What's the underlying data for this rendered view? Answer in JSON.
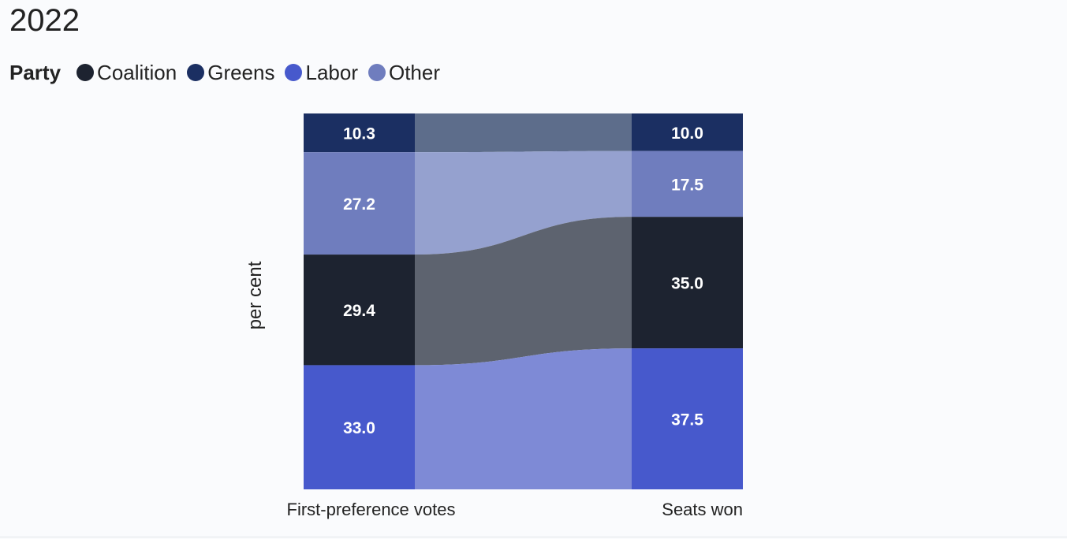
{
  "chart_data": {
    "type": "sankey",
    "title": "2022",
    "ylabel": "per cent",
    "legend": {
      "title": "Party",
      "placement": "top-left",
      "items": [
        {
          "name": "Coalition",
          "color": "#1d2330"
        },
        {
          "name": "Greens",
          "color": "#1b2f62"
        },
        {
          "name": "Labor",
          "color": "#4759cc"
        },
        {
          "name": "Other",
          "color": "#6f7dbe"
        }
      ]
    },
    "stack_order": [
      "Greens",
      "Other",
      "Coalition",
      "Labor"
    ],
    "columns": [
      {
        "label": "First-preference votes",
        "values": {
          "Greens": 10.3,
          "Other": 27.2,
          "Coalition": 29.4,
          "Labor": 33.0
        },
        "value_labels": {
          "Greens": "10.3",
          "Other": "27.2",
          "Coalition": "29.4",
          "Labor": "33.0"
        }
      },
      {
        "label": "Seats won",
        "values": {
          "Greens": 10.0,
          "Other": 17.5,
          "Coalition": 35.0,
          "Labor": 37.5
        },
        "value_labels": {
          "Greens": "10.0",
          "Other": "17.5",
          "Coalition": "35.0",
          "Labor": "37.5"
        }
      }
    ],
    "flow_colors": {
      "Greens": "#5d6d8b",
      "Other": "#95a1cf",
      "Coalition": "#5d636f",
      "Labor": "#7e8ad6"
    }
  }
}
